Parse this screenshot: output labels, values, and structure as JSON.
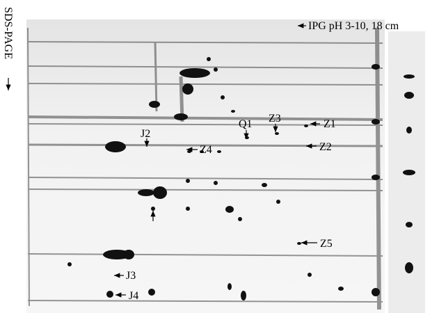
{
  "header": {
    "ipg_label": "IPG pH 3-10, 18 cm",
    "sds_label": "SDS-PAGE"
  },
  "labels": [
    {
      "text": "Z1"
    },
    {
      "text": "Z2"
    },
    {
      "text": "Z3"
    },
    {
      "text": "Z4"
    },
    {
      "text": "Z5"
    },
    {
      "text": "Q1"
    },
    {
      "text": "J2"
    },
    {
      "text": "J3"
    },
    {
      "text": "J4"
    }
  ]
}
